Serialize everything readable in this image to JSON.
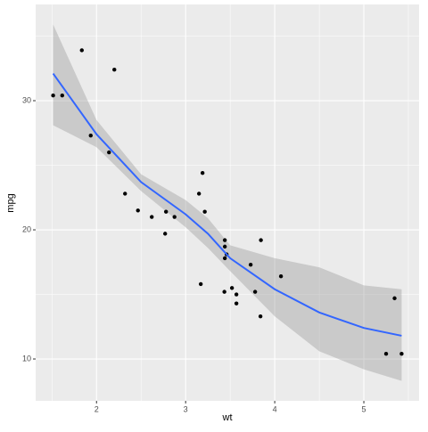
{
  "chart_data": {
    "type": "scatter",
    "x_label": "wt",
    "y_label": "mpg",
    "xlim": [
      1.317,
      5.62
    ],
    "ylim": [
      6.76,
      37.45
    ],
    "xticks": [
      2,
      3,
      4,
      5
    ],
    "yticks": [
      10,
      20,
      30
    ],
    "grid": true,
    "series": [
      {
        "name": "points",
        "color": "#000000",
        "x": [
          2.62,
          2.875,
          2.32,
          3.215,
          3.44,
          3.46,
          3.57,
          3.19,
          3.15,
          3.44,
          3.44,
          4.07,
          3.73,
          3.78,
          5.25,
          5.424,
          5.345,
          2.2,
          1.615,
          1.835,
          2.465,
          3.52,
          3.435,
          3.84,
          3.845,
          1.935,
          2.14,
          1.513,
          3.17,
          2.77,
          3.57,
          2.78
        ],
        "values": [
          21.0,
          21.0,
          22.8,
          21.4,
          18.7,
          18.1,
          14.3,
          24.4,
          22.8,
          19.2,
          17.8,
          16.4,
          17.3,
          15.2,
          10.4,
          10.4,
          14.7,
          32.4,
          30.4,
          33.9,
          21.5,
          15.5,
          15.2,
          13.3,
          19.2,
          27.3,
          26.0,
          30.4,
          15.8,
          19.7,
          15.0,
          21.4
        ]
      }
    ],
    "smooth": {
      "color": "#3366ff",
      "band_color": "#999999",
      "x": [
        1.513,
        2,
        2.5,
        3,
        3.25,
        3.5,
        4,
        4.5,
        5,
        5.424
      ],
      "values": [
        32.1,
        27.4,
        23.7,
        21.2,
        19.7,
        17.8,
        15.4,
        13.6,
        12.4,
        11.8
      ],
      "upper": [
        35.9,
        28.5,
        24.3,
        22.3,
        20.9,
        18.8,
        17.8,
        17.1,
        15.7,
        15.4
      ],
      "lower": [
        28.1,
        26.4,
        23.0,
        20.2,
        18.6,
        16.8,
        13.3,
        10.6,
        9.2,
        8.3
      ]
    }
  }
}
